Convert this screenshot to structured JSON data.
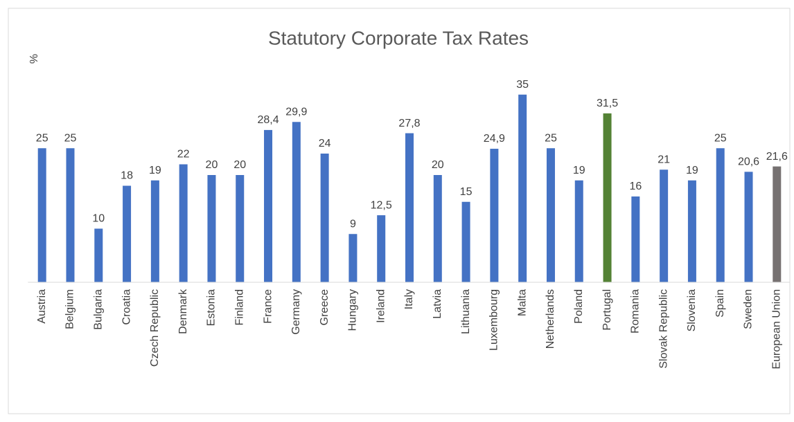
{
  "chart_data": {
    "type": "bar",
    "title": "Statutory Corporate Tax Rates",
    "y_label": "%",
    "categories": [
      "Austria",
      "Belgium",
      "Bulgaria",
      "Croatia",
      "Czech Republic",
      "Denmark",
      "Estonia",
      "Finland",
      "France",
      "Germany",
      "Greece",
      "Hungary",
      "Ireland",
      "Italy",
      "Latvia",
      "Lithuania",
      "Luxembourg",
      "Malta",
      "Netherlands",
      "Poland",
      "Portugal",
      "Romania",
      "Slovak Republic",
      "Slovenia",
      "Spain",
      "Sweden",
      "European Union"
    ],
    "values": [
      25,
      25,
      10,
      18,
      19,
      22,
      20,
      20,
      28.4,
      29.9,
      24,
      9,
      12.5,
      27.8,
      20,
      15,
      24.9,
      35,
      25,
      19,
      31.5,
      16,
      21,
      19,
      25,
      20.6,
      21.6
    ],
    "value_labels": [
      "25",
      "25",
      "10",
      "18",
      "19",
      "22",
      "20",
      "20",
      "28,4",
      "29,9",
      "24",
      "9",
      "12,5",
      "27,8",
      "20",
      "15",
      "24,9",
      "35",
      "25",
      "19",
      "31,5",
      "16",
      "21",
      "19",
      "25",
      "20,6",
      "21,6"
    ],
    "colors": [
      "#4472c4",
      "#4472c4",
      "#4472c4",
      "#4472c4",
      "#4472c4",
      "#4472c4",
      "#4472c4",
      "#4472c4",
      "#4472c4",
      "#4472c4",
      "#4472c4",
      "#4472c4",
      "#4472c4",
      "#4472c4",
      "#4472c4",
      "#4472c4",
      "#4472c4",
      "#4472c4",
      "#4472c4",
      "#4472c4",
      "#548235",
      "#4472c4",
      "#4472c4",
      "#4472c4",
      "#4472c4",
      "#4472c4",
      "#767171"
    ],
    "ylim": [
      0,
      40
    ]
  }
}
